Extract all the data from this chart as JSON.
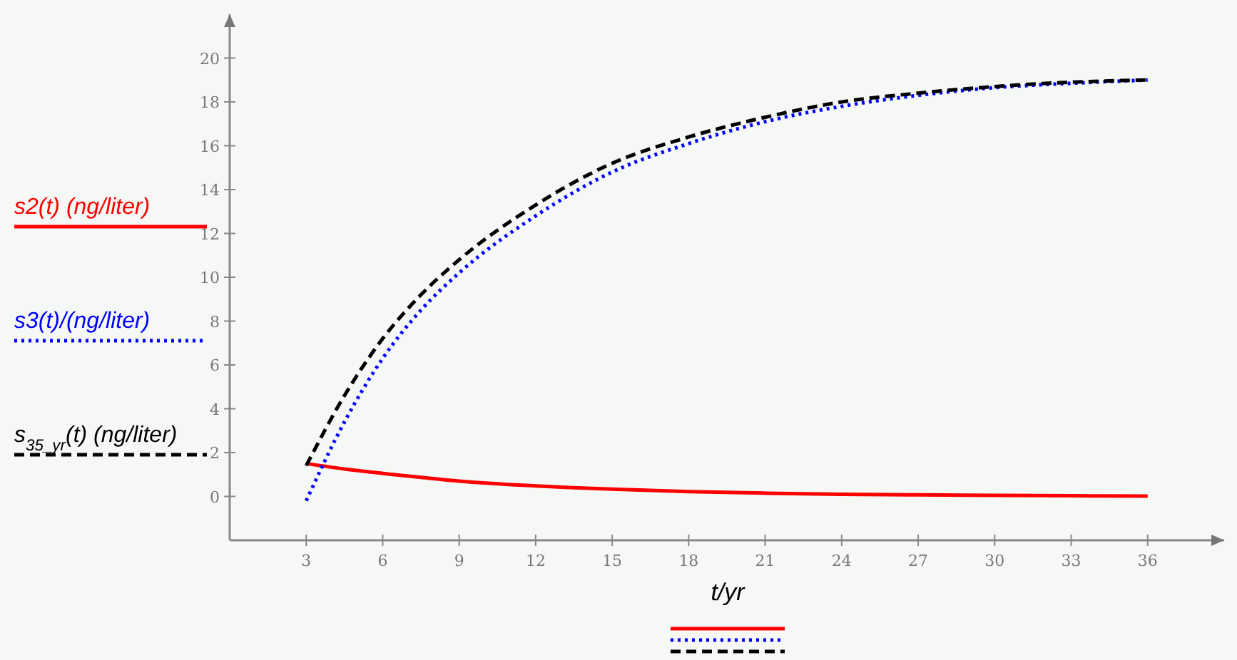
{
  "chart_data": {
    "type": "line",
    "xlabel": "t/yr",
    "x": [
      3,
      4.5,
      6,
      7.5,
      9,
      12,
      15,
      18,
      21,
      24,
      27,
      30,
      33,
      36
    ],
    "series": [
      {
        "name": "s2(t) (ng/liter)",
        "color": "#ff0000",
        "line_style": "solid",
        "values": [
          1.5,
          1.25,
          1.05,
          0.87,
          0.7,
          0.48,
          0.33,
          0.22,
          0.15,
          0.1,
          0.07,
          0.05,
          0.03,
          0.02
        ]
      },
      {
        "name": "s3(t)/(ng/liter)",
        "color": "#0000ff",
        "line_style": "dotted",
        "values": [
          -0.2,
          3.4,
          6.3,
          8.5,
          10.2,
          12.8,
          14.8,
          16.1,
          17.1,
          17.8,
          18.3,
          18.65,
          18.85,
          19.0
        ]
      },
      {
        "name": "s$_{35_yr}$(t) (ng/liter)",
        "color": "#000000",
        "line_style": "dashed",
        "values": [
          1.4,
          4.6,
          7.2,
          9.2,
          10.8,
          13.3,
          15.2,
          16.4,
          17.3,
          18.0,
          18.4,
          18.7,
          18.9,
          19.0
        ]
      }
    ],
    "xlim": [
      0,
      39
    ],
    "ylim": [
      -2,
      22
    ],
    "xticks": [
      3,
      6,
      9,
      12,
      15,
      18,
      21,
      24,
      27,
      30,
      33,
      36
    ],
    "yticks": [
      0,
      2,
      4,
      6,
      8,
      10,
      12,
      14,
      16,
      18,
      20
    ],
    "grid": false,
    "legend": "left",
    "marker": "none"
  }
}
